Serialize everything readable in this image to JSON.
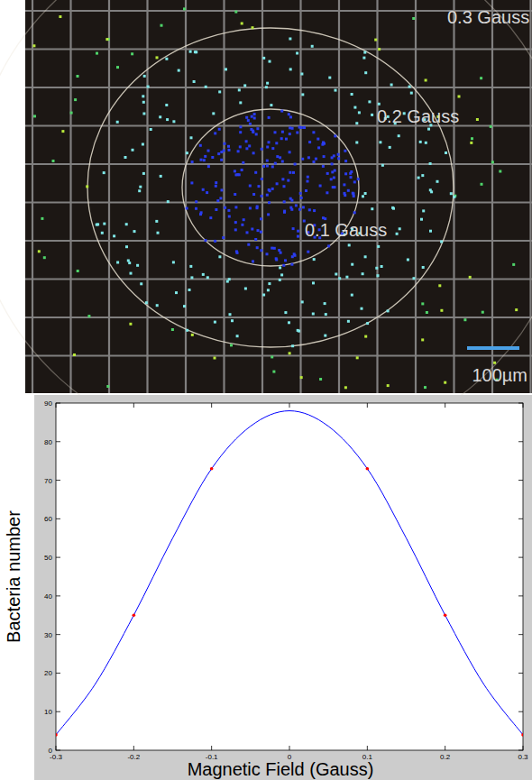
{
  "micrograph": {
    "labels": [
      "0.3 Gauss",
      "0.2 Gauss",
      "0.1 Gauss"
    ],
    "scale_bar": "100µm"
  },
  "chart_data": {
    "type": "line",
    "x_label": "Magnetic Field (Gauss)",
    "y_label": "Bacteria number",
    "xlim": [
      -0.3,
      0.3
    ],
    "xticks": [
      -0.3,
      -0.2,
      -0.1,
      0,
      0.1,
      0.2,
      0.3
    ],
    "ylim": [
      0,
      90
    ],
    "yticks": [
      0,
      10,
      20,
      30,
      40,
      50,
      60,
      70,
      80,
      90
    ],
    "grid": false,
    "series": [
      {
        "type": "line",
        "color": "#0000ff",
        "line_style": "solid",
        "x": [
          -0.3,
          -0.25,
          -0.2,
          -0.15,
          -0.1,
          -0.05,
          0,
          0.05,
          0.1,
          0.15,
          0.2,
          0.25,
          0.3
        ],
        "values": [
          4,
          17,
          35,
          55,
          73,
          84,
          88,
          84,
          73,
          55,
          35,
          17,
          4
        ]
      },
      {
        "type": "scatter",
        "color": "#ff0000",
        "marker": "point",
        "x": [
          -0.3,
          -0.2,
          -0.1,
          0.1,
          0.2,
          0.3
        ],
        "values": [
          4,
          35,
          73,
          73,
          35,
          4
        ]
      }
    ]
  }
}
